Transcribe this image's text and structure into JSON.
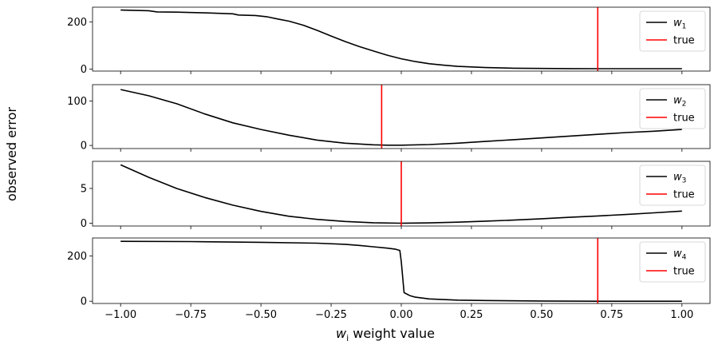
{
  "figure": {
    "ylabel": "observed error",
    "xlabel_var": "w",
    "xlabel_sub": "i",
    "xlabel_rest": " weight value"
  },
  "colors": {
    "curve": "#000000",
    "true_line": "#ff0000",
    "axes": "#000000",
    "legend_border": "#cccccc"
  },
  "chart_data": [
    {
      "type": "line",
      "legend": {
        "placement": "top-right",
        "entries": [
          {
            "base": "w",
            "sub": "1"
          },
          {
            "text": "true"
          }
        ]
      },
      "xlim": [
        -1.1,
        1.1
      ],
      "ylim": [
        -8,
        262
      ],
      "yticks": [
        0,
        200
      ],
      "xticks": [
        -1.0,
        -0.75,
        -0.5,
        -0.25,
        0.0,
        0.25,
        0.5,
        0.75,
        1.0
      ],
      "true_x": 0.7,
      "series": [
        {
          "x": [
            -1.0,
            -0.9,
            -0.87,
            -0.8,
            -0.7,
            -0.6,
            -0.58,
            -0.52,
            -0.48,
            -0.44,
            -0.4,
            -0.35,
            -0.3,
            -0.25,
            -0.2,
            -0.15,
            -0.1,
            -0.05,
            0.0,
            0.05,
            0.1,
            0.15,
            0.2,
            0.3,
            0.4,
            0.5,
            0.6,
            0.7,
            0.8,
            0.9,
            1.0
          ],
          "y": [
            250,
            247,
            242,
            241,
            238,
            234,
            229,
            227,
            222,
            212,
            203,
            186,
            164,
            140,
            117,
            96,
            77,
            59,
            44,
            32,
            23,
            17,
            12,
            7,
            4,
            3,
            2.5,
            2,
            2,
            2,
            2
          ]
        }
      ]
    },
    {
      "type": "line",
      "legend": {
        "placement": "top-right",
        "entries": [
          {
            "base": "w",
            "sub": "2"
          },
          {
            "text": "true"
          }
        ]
      },
      "xlim": [
        -1.1,
        1.1
      ],
      "ylim": [
        -7,
        137
      ],
      "yticks": [
        0,
        100
      ],
      "xticks": [
        -1.0,
        -0.75,
        -0.5,
        -0.25,
        0.0,
        0.25,
        0.5,
        0.75,
        1.0
      ],
      "true_x": -0.07,
      "series": [
        {
          "x": [
            -1.0,
            -0.9,
            -0.8,
            -0.7,
            -0.6,
            -0.5,
            -0.4,
            -0.3,
            -0.2,
            -0.1,
            -0.05,
            0.0,
            0.1,
            0.2,
            0.3,
            0.4,
            0.5,
            0.6,
            0.7,
            0.8,
            0.9,
            1.0
          ],
          "y": [
            126,
            112,
            94,
            71,
            51,
            36,
            23,
            12,
            5,
            1.5,
            0.5,
            0.5,
            2,
            5,
            9,
            13,
            17,
            21,
            25,
            29,
            32,
            36
          ]
        }
      ]
    },
    {
      "type": "line",
      "legend": {
        "placement": "top-right",
        "entries": [
          {
            "base": "w",
            "sub": "3"
          },
          {
            "text": "true"
          }
        ]
      },
      "xlim": [
        -1.1,
        1.1
      ],
      "ylim": [
        -0.4,
        8.9
      ],
      "yticks": [
        0,
        5
      ],
      "xticks": [
        -1.0,
        -0.75,
        -0.5,
        -0.25,
        0.0,
        0.25,
        0.5,
        0.75,
        1.0
      ],
      "true_x": 0.0,
      "series": [
        {
          "x": [
            -1.0,
            -0.9,
            -0.8,
            -0.7,
            -0.6,
            -0.5,
            -0.4,
            -0.3,
            -0.2,
            -0.1,
            0.0,
            0.1,
            0.2,
            0.3,
            0.4,
            0.5,
            0.6,
            0.7,
            0.8,
            0.9,
            1.0
          ],
          "y": [
            8.4,
            6.6,
            5.0,
            3.7,
            2.6,
            1.7,
            1.0,
            0.55,
            0.25,
            0.07,
            0.0,
            0.05,
            0.15,
            0.3,
            0.45,
            0.65,
            0.85,
            1.05,
            1.25,
            1.5,
            1.75
          ]
        }
      ]
    },
    {
      "type": "line",
      "legend": {
        "placement": "top-right",
        "entries": [
          {
            "base": "w",
            "sub": "4"
          },
          {
            "text": "true"
          }
        ]
      },
      "xlim": [
        -1.1,
        1.1
      ],
      "ylim": [
        -10,
        280
      ],
      "yticks": [
        0,
        200
      ],
      "xticks": [
        -1.0,
        -0.75,
        -0.5,
        -0.25,
        0.0,
        0.25,
        0.5,
        0.75,
        1.0
      ],
      "true_x": 0.7,
      "series": [
        {
          "x": [
            -1.0,
            -0.75,
            -0.5,
            -0.3,
            -0.2,
            -0.15,
            -0.1,
            -0.05,
            -0.02,
            -0.005,
            0.0,
            0.01,
            0.03,
            0.05,
            0.1,
            0.2,
            0.3,
            0.5,
            0.7,
            1.0
          ],
          "y": [
            265,
            264,
            261,
            257,
            252,
            247,
            241,
            235,
            230,
            225,
            175,
            38,
            25,
            18,
            10,
            5,
            3,
            1,
            0,
            0
          ]
        }
      ]
    }
  ]
}
